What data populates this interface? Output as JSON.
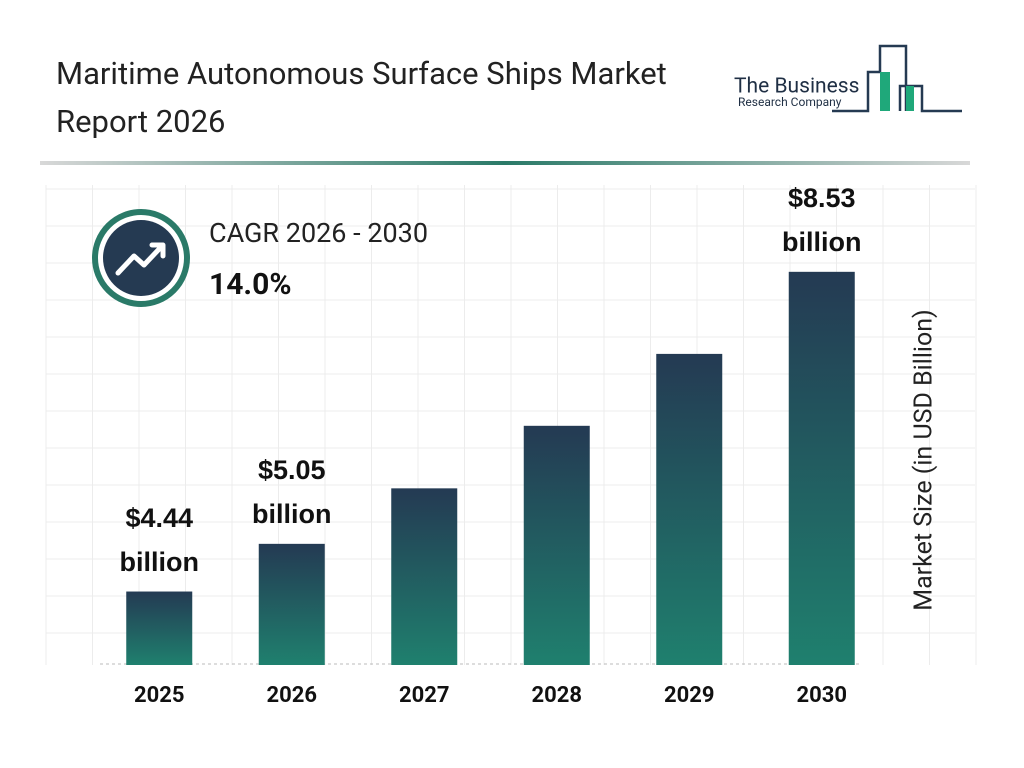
{
  "chart_data": {
    "type": "bar",
    "title": "Maritime Autonomous Surface Ships Market Report 2026",
    "cagr_label": "CAGR 2026 - 2030",
    "cagr_value": "14.0%",
    "y_label": "Market Size (in USD Billion)",
    "categories": [
      "2025",
      "2026",
      "2027",
      "2028",
      "2029",
      "2030"
    ],
    "values": [
      4.44,
      5.05,
      5.76,
      6.56,
      7.48,
      8.53
    ],
    "value_labels": [
      "$4.44 billion",
      "$5.05 billion",
      null,
      null,
      null,
      "$8.53 billion"
    ],
    "colors": [
      "#243a53",
      "#1f806e"
    ],
    "ylim": [
      3.5,
      9.5
    ]
  },
  "logo": {
    "line1": "The Business",
    "line2": "Research Company"
  }
}
